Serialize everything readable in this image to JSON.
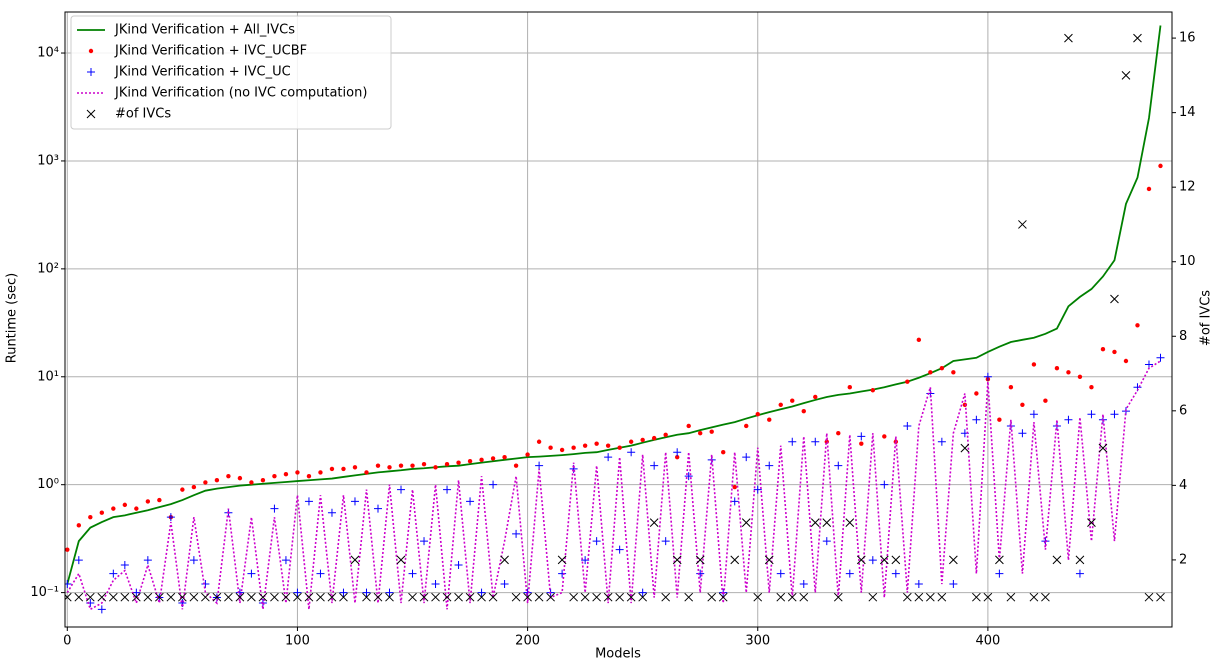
{
  "chart_data": {
    "type": "line",
    "x_label": "Models",
    "y_label": "Runtime (sec)",
    "y2_label": "#of IVCs",
    "log_y": true,
    "grid": true,
    "legend": "upper-left",
    "xlim": [
      -1,
      480
    ],
    "xticks": [
      0,
      100,
      200,
      300,
      400
    ],
    "ylim": [
      0.048,
      24000
    ],
    "yticks": [
      {
        "value": 0.1,
        "label": "10⁻¹"
      },
      {
        "value": 1,
        "label": "10⁰"
      },
      {
        "value": 10,
        "label": "10¹"
      },
      {
        "value": 100,
        "label": "10²"
      },
      {
        "value": 1000,
        "label": "10³"
      },
      {
        "value": 10000,
        "label": "10⁴"
      }
    ],
    "y2lim": [
      0.2,
      16.7
    ],
    "y2ticks": [
      2,
      4,
      6,
      8,
      10,
      12,
      14,
      16
    ],
    "x": [
      0,
      5,
      10,
      15,
      20,
      25,
      30,
      35,
      40,
      45,
      50,
      55,
      60,
      65,
      70,
      75,
      80,
      85,
      90,
      95,
      100,
      105,
      110,
      115,
      120,
      125,
      130,
      135,
      140,
      145,
      150,
      155,
      160,
      165,
      170,
      175,
      180,
      185,
      190,
      195,
      200,
      205,
      210,
      215,
      220,
      225,
      230,
      235,
      240,
      245,
      250,
      255,
      260,
      265,
      270,
      275,
      280,
      285,
      290,
      295,
      300,
      305,
      310,
      315,
      320,
      325,
      330,
      335,
      340,
      345,
      350,
      355,
      360,
      365,
      370,
      375,
      380,
      385,
      390,
      395,
      400,
      405,
      410,
      415,
      420,
      425,
      430,
      435,
      440,
      445,
      450,
      455,
      460,
      465,
      470,
      475
    ],
    "series": [
      {
        "name": "JKind Verification + All_IVCs",
        "color": "#008000",
        "marker": "line",
        "values": [
          0.12,
          0.3,
          0.4,
          0.45,
          0.5,
          0.52,
          0.55,
          0.58,
          0.62,
          0.66,
          0.72,
          0.8,
          0.88,
          0.92,
          0.95,
          0.98,
          1.0,
          1.02,
          1.04,
          1.06,
          1.08,
          1.1,
          1.12,
          1.14,
          1.18,
          1.22,
          1.26,
          1.3,
          1.33,
          1.36,
          1.4,
          1.42,
          1.45,
          1.48,
          1.5,
          1.55,
          1.6,
          1.65,
          1.7,
          1.75,
          1.8,
          1.82,
          1.85,
          1.88,
          1.92,
          1.97,
          2.0,
          2.1,
          2.2,
          2.3,
          2.45,
          2.6,
          2.75,
          2.9,
          3.0,
          3.2,
          3.4,
          3.6,
          3.8,
          4.1,
          4.4,
          4.7,
          5.0,
          5.3,
          5.7,
          6.1,
          6.5,
          6.8,
          7.0,
          7.3,
          7.6,
          8.0,
          8.5,
          9.0,
          9.8,
          10.8,
          12,
          14,
          14.5,
          15,
          17,
          19,
          21,
          22,
          23,
          25,
          28,
          45,
          55,
          65,
          85,
          120,
          400,
          700,
          2500,
          18000
        ]
      },
      {
        "name": "JKind Verification + IVC_UCBF",
        "color": "#ff0000",
        "marker": "dot",
        "values": [
          0.25,
          0.42,
          0.5,
          0.55,
          0.6,
          0.65,
          0.6,
          0.7,
          0.72,
          0.5,
          0.9,
          0.95,
          1.05,
          1.1,
          1.2,
          1.15,
          1.05,
          1.1,
          1.2,
          1.25,
          1.3,
          1.2,
          1.3,
          1.4,
          1.4,
          1.45,
          1.3,
          1.5,
          1.45,
          1.5,
          1.5,
          1.55,
          1.45,
          1.55,
          1.6,
          1.65,
          1.7,
          1.75,
          1.8,
          1.5,
          1.9,
          2.5,
          2.2,
          2.1,
          2.2,
          2.3,
          2.4,
          2.3,
          2.2,
          2.5,
          2.6,
          2.7,
          2.9,
          1.8,
          3.5,
          3.0,
          3.1,
          2.0,
          0.95,
          3.5,
          4.5,
          4.0,
          5.5,
          6.0,
          4.8,
          6.5,
          2.5,
          3.0,
          8.0,
          2.4,
          7.5,
          2.8,
          2.5,
          9.0,
          22,
          11,
          12,
          11,
          5.5,
          7.0,
          9.5,
          4.0,
          8.0,
          5.5,
          13,
          6,
          12,
          11,
          10,
          8,
          18,
          17,
          14,
          30,
          550,
          900
        ]
      },
      {
        "name": "JKind Verification + IVC_UC",
        "color": "#0000ff",
        "marker": "plus",
        "values": [
          0.12,
          0.2,
          0.08,
          0.07,
          0.15,
          0.18,
          0.1,
          0.2,
          0.09,
          0.5,
          0.08,
          0.2,
          0.12,
          0.09,
          0.55,
          0.1,
          0.15,
          0.08,
          0.6,
          0.2,
          0.1,
          0.7,
          0.15,
          0.55,
          0.1,
          0.7,
          0.1,
          0.6,
          0.1,
          0.9,
          0.15,
          0.3,
          0.12,
          0.9,
          0.18,
          0.7,
          0.1,
          1.0,
          0.12,
          0.35,
          0.1,
          1.5,
          0.1,
          0.15,
          1.4,
          0.2,
          0.3,
          1.8,
          0.25,
          2.0,
          0.1,
          1.5,
          0.3,
          2.0,
          1.2,
          0.15,
          1.7,
          0.1,
          0.7,
          1.8,
          0.9,
          1.5,
          0.15,
          2.5,
          0.12,
          2.5,
          0.3,
          1.5,
          0.15,
          2.8,
          0.2,
          1.0,
          0.15,
          3.5,
          0.12,
          7.0,
          2.5,
          0.12,
          3.0,
          4.0,
          10,
          0.15,
          3.5,
          3.0,
          4.5,
          0.3,
          3.5,
          4.0,
          0.15,
          4.5,
          4.0,
          4.5,
          4.8,
          8,
          13,
          15
        ]
      },
      {
        "name": "JKind Verification (no IVC computation)",
        "color": "#cc00cc",
        "marker": "dotted",
        "values": [
          0.1,
          0.15,
          0.07,
          0.08,
          0.13,
          0.16,
          0.08,
          0.18,
          0.08,
          0.45,
          0.07,
          0.5,
          0.1,
          0.08,
          0.6,
          0.08,
          0.5,
          0.07,
          0.5,
          0.08,
          0.8,
          0.07,
          0.8,
          0.08,
          0.8,
          0.08,
          0.9,
          0.08,
          1.0,
          0.08,
          0.9,
          0.08,
          1.0,
          0.07,
          1.1,
          0.08,
          1.2,
          0.09,
          0.3,
          1.2,
          0.08,
          1.4,
          0.09,
          0.1,
          1.6,
          0.1,
          1.5,
          0.08,
          1.8,
          0.08,
          1.9,
          0.09,
          2.0,
          0.09,
          2.0,
          0.1,
          1.9,
          0.08,
          2.0,
          0.1,
          2.2,
          0.1,
          2.3,
          0.09,
          2.8,
          0.1,
          3.0,
          0.09,
          2.9,
          0.1,
          3.0,
          0.09,
          2.8,
          0.1,
          3.5,
          8.0,
          0.12,
          3.0,
          7.0,
          0.15,
          9.0,
          0.2,
          4.0,
          0.15,
          3.8,
          0.25,
          4.0,
          0.2,
          4.2,
          0.3,
          4.5,
          0.3,
          5.0,
          7.5,
          12,
          14
        ]
      },
      {
        "name": "#of IVCs",
        "color": "#000000",
        "marker": "x",
        "axis": "y2",
        "values": [
          1,
          1,
          1,
          1,
          1,
          1,
          1,
          1,
          1,
          1,
          1,
          1,
          1,
          1,
          1,
          1,
          1,
          1,
          1,
          1,
          1,
          1,
          1,
          1,
          1,
          2,
          1,
          1,
          1,
          2,
          1,
          1,
          1,
          1,
          1,
          1,
          1,
          1,
          2,
          1,
          1,
          1,
          1,
          2,
          1,
          1,
          1,
          1,
          1,
          1,
          1,
          3,
          1,
          2,
          1,
          2,
          1,
          1,
          2,
          3,
          1,
          2,
          1,
          1,
          1,
          3,
          3,
          1,
          3,
          2,
          1,
          2,
          2,
          1,
          1,
          1,
          1,
          2,
          5,
          1,
          1,
          2,
          1,
          11,
          1,
          1,
          2,
          16,
          2,
          3,
          5,
          9,
          15,
          16,
          1,
          1
        ]
      }
    ]
  }
}
